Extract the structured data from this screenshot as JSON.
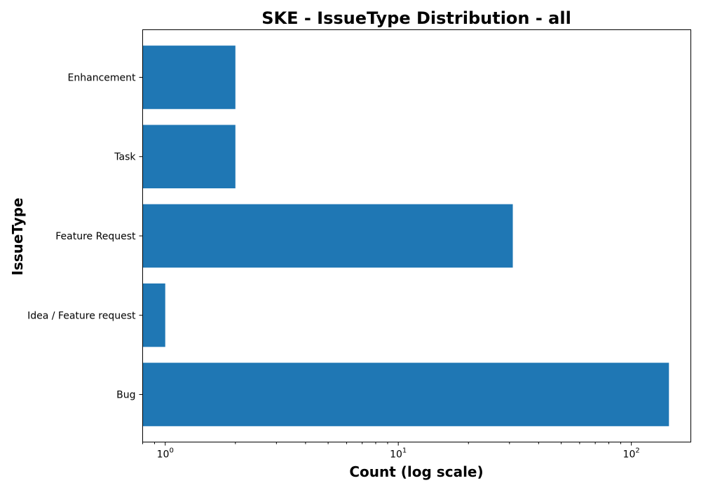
{
  "chart_data": {
    "type": "bar",
    "orientation": "horizontal",
    "title": "SKE - IssueType Distribution - all",
    "xlabel": "Count (log scale)",
    "ylabel": "IssueType",
    "xscale": "log",
    "xlim": [
      0.8,
      180
    ],
    "x_ticks": [
      {
        "value": 1,
        "base": "10",
        "exp": "0"
      },
      {
        "value": 10,
        "base": "10",
        "exp": "1"
      },
      {
        "value": 100,
        "base": "10",
        "exp": "2"
      }
    ],
    "categories": [
      "Bug",
      "Idea / Feature request",
      "Feature Request",
      "Task",
      "Enhancement"
    ],
    "values": [
      145,
      1,
      31,
      2,
      2
    ],
    "bar_color": "#1f77b4",
    "grid": false
  }
}
